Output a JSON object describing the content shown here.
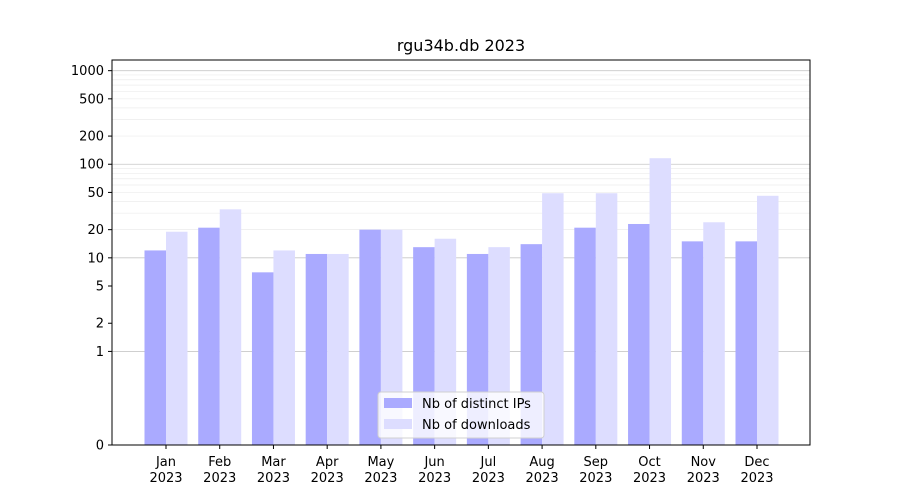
{
  "chart_data": {
    "type": "bar",
    "title": "rgu34b.db 2023",
    "xlabel": "",
    "ylabel": "",
    "yscale": "symlog",
    "ylim": [
      0,
      1300
    ],
    "y_ticks": [
      0,
      1,
      2,
      5,
      10,
      20,
      50,
      100,
      200,
      500,
      1000
    ],
    "grid": "y",
    "legend_position": "lower center",
    "categories": [
      [
        "Jan",
        "2023"
      ],
      [
        "Feb",
        "2023"
      ],
      [
        "Mar",
        "2023"
      ],
      [
        "Apr",
        "2023"
      ],
      [
        "May",
        "2023"
      ],
      [
        "Jun",
        "2023"
      ],
      [
        "Jul",
        "2023"
      ],
      [
        "Aug",
        "2023"
      ],
      [
        "Sep",
        "2023"
      ],
      [
        "Oct",
        "2023"
      ],
      [
        "Nov",
        "2023"
      ],
      [
        "Dec",
        "2023"
      ]
    ],
    "series": [
      {
        "name": "Nb of distinct IPs",
        "color": "#aaaaff",
        "values": [
          12,
          21,
          7,
          11,
          20,
          13,
          11,
          14,
          21,
          23,
          15,
          15
        ]
      },
      {
        "name": "Nb of downloads",
        "color": "#ddddff",
        "values": [
          19,
          33,
          12,
          11,
          20,
          16,
          13,
          49,
          49,
          116,
          24,
          46
        ]
      }
    ]
  }
}
